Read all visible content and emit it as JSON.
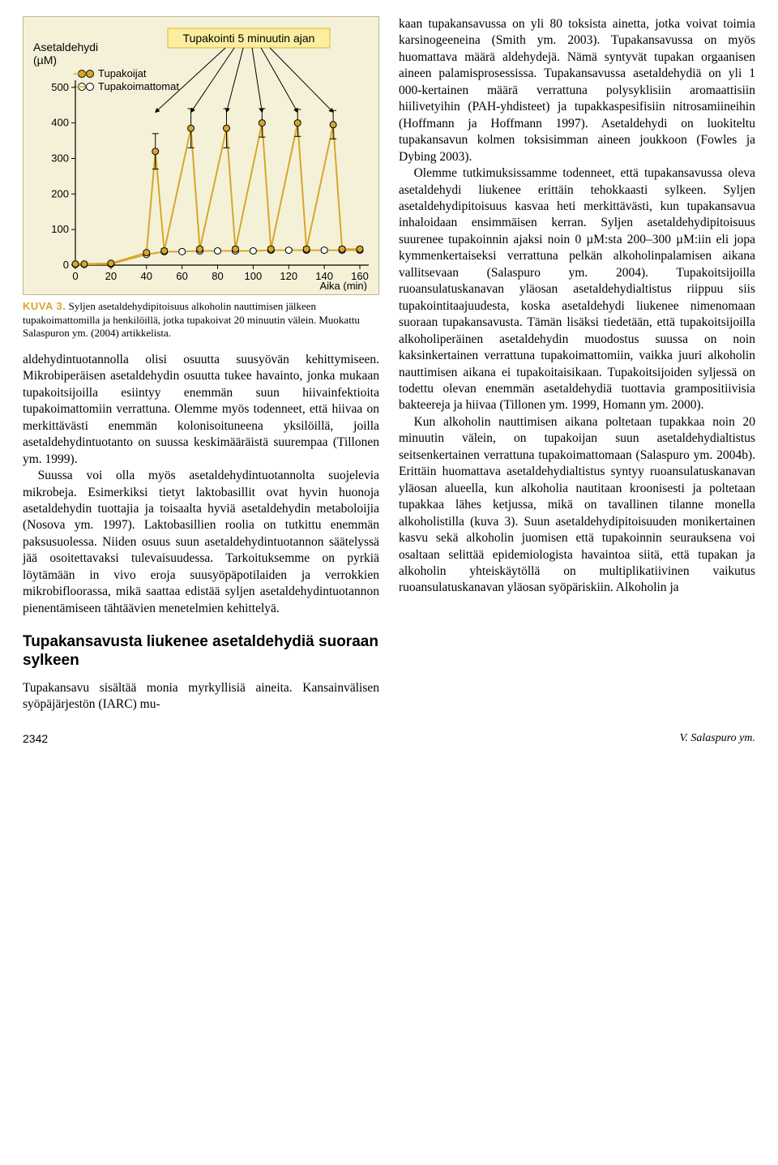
{
  "chart": {
    "type": "line-with-errorbars",
    "background_color": "#f5f1d9",
    "border_color": "#bdb88a",
    "y_axis_title_line1": "Asetaldehydi",
    "y_axis_title_line2": "(µM)",
    "annotation_box_text": "Tupakointi 5 minuutin ajan",
    "annotation_box_fill": "#fceea0",
    "annotation_box_border": "#d7b82b",
    "legend": [
      {
        "label": "Tupakoijat",
        "color": "#d7a72b",
        "marker_fill": "#d7a72b"
      },
      {
        "label": "Tupakoimattomat",
        "color": "#d7a72b",
        "marker_fill": "#ffffff"
      }
    ],
    "x_label": "Aika (min)",
    "x_ticks": [
      0,
      20,
      40,
      60,
      80,
      100,
      120,
      140,
      160
    ],
    "y_ticks": [
      0,
      100,
      200,
      300,
      400,
      500
    ],
    "xlim": [
      0,
      165
    ],
    "ylim": [
      0,
      520
    ],
    "axis_color": "#000000",
    "series_smokers": {
      "color": "#d7a72b",
      "marker_fill": "#d7a72b",
      "marker_stroke": "#000000",
      "line_width": 2,
      "marker_radius": 4,
      "points": [
        {
          "x": 0,
          "y": 3,
          "err": 0
        },
        {
          "x": 5,
          "y": 3,
          "err": 0
        },
        {
          "x": 20,
          "y": 5,
          "err": 0
        },
        {
          "x": 40,
          "y": 35,
          "err": 5
        },
        {
          "x": 45,
          "y": 320,
          "err": 50
        },
        {
          "x": 50,
          "y": 40,
          "err": 6
        },
        {
          "x": 65,
          "y": 385,
          "err": 55
        },
        {
          "x": 70,
          "y": 45,
          "err": 6
        },
        {
          "x": 85,
          "y": 385,
          "err": 55
        },
        {
          "x": 90,
          "y": 45,
          "err": 6
        },
        {
          "x": 105,
          "y": 400,
          "err": 40
        },
        {
          "x": 110,
          "y": 45,
          "err": 6
        },
        {
          "x": 125,
          "y": 400,
          "err": 38
        },
        {
          "x": 130,
          "y": 45,
          "err": 6
        },
        {
          "x": 145,
          "y": 395,
          "err": 40
        },
        {
          "x": 150,
          "y": 45,
          "err": 6
        },
        {
          "x": 160,
          "y": 45,
          "err": 6
        }
      ]
    },
    "series_nonsmokers": {
      "color": "#d7a72b",
      "marker_fill": "#ffffff",
      "marker_stroke": "#000000",
      "line_width": 2,
      "marker_radius": 4,
      "points": [
        {
          "x": 0,
          "y": 2,
          "err": 0
        },
        {
          "x": 5,
          "y": 2,
          "err": 0
        },
        {
          "x": 20,
          "y": 3,
          "err": 0
        },
        {
          "x": 40,
          "y": 30,
          "err": 4
        },
        {
          "x": 50,
          "y": 38,
          "err": 5
        },
        {
          "x": 60,
          "y": 38,
          "err": 5
        },
        {
          "x": 70,
          "y": 40,
          "err": 5
        },
        {
          "x": 80,
          "y": 40,
          "err": 5
        },
        {
          "x": 90,
          "y": 40,
          "err": 5
        },
        {
          "x": 100,
          "y": 40,
          "err": 5
        },
        {
          "x": 110,
          "y": 42,
          "err": 5
        },
        {
          "x": 120,
          "y": 42,
          "err": 5
        },
        {
          "x": 130,
          "y": 42,
          "err": 5
        },
        {
          "x": 140,
          "y": 42,
          "err": 5
        },
        {
          "x": 150,
          "y": 42,
          "err": 5
        },
        {
          "x": 160,
          "y": 42,
          "err": 5
        }
      ]
    },
    "arrow_x_positions": [
      45,
      65,
      85,
      105,
      125,
      145
    ]
  },
  "caption": {
    "label": "KUVA 3.",
    "text": "Syljen asetaldehydipitoisuus alkoholin nauttimisen jälkeen tupakoimattomilla ja henkilöillä, jotka tupakoivat 20 minuutin välein. Muokattu Salaspuron ym. (2004) artikkelista."
  },
  "left_paragraphs": [
    "aldehydintuotannolla olisi osuutta suusyövän kehittymiseen. Mikrobiperäisen asetaldehydin osuutta tukee havainto, jonka mukaan tupakoitsijoilla esiintyy enemmän suun hiivainfektioita tupakoimattomiin verrattuna. Olemme myös todenneet, että hiivaa on merkittävästi enemmän kolonisoituneena yksilöillä, joilla asetaldehydintuotanto on suussa keskimääräistä suurempaa (Tillonen ym. 1999).",
    "Suussa voi olla myös asetaldehydintuotannolta suojelevia mikrobeja. Esimerkiksi tietyt laktobasillit ovat hyvin huonoja asetaldehydin tuottajia ja toisaalta hyviä asetaldehydin metaboloijia (Nosova ym. 1997). Laktobasillien roolia on tutkittu enemmän paksusuolessa. Niiden osuus suun asetaldehydintuotannon säätelyssä jää osoitettavaksi tulevaisuudessa. Tarkoituksemme on pyrkiä löytämään in vivo eroja suusyöpäpotilaiden ja verrokkien mikrobifloorassa, mikä saattaa edistää syljen asetaldehydintuotannon pienentämiseen tähtäävien menetelmien kehittelyä."
  ],
  "section_heading": "Tupakansavusta liukenee asetaldehydiä suoraan sylkeen",
  "left_paragraphs_after": [
    "Tupakansavu sisältää monia myrkyllisiä aineita. Kansainvälisen syöpäjärjestön (IARC) mu-"
  ],
  "right_paragraphs": [
    "kaan tupakansavussa on yli 80 toksista ainetta, jotka voivat toimia karsinogeeneina (Smith ym. 2003). Tupakansavussa on myös huomattava määrä aldehydejä. Nämä syntyvät tupakan orgaanisen aineen palamisprosessissa. Tupakansavussa asetaldehydiä on yli 1 000-kertainen määrä verrattuna polysyklisiin aromaattisiin hiilivetyihin (PAH-yhdisteet) ja tupakkaspesifisiin nitrosamiineihin (Hoffmann ja Hoffmann 1997). Asetaldehydi on luokiteltu tupakansavun kolmen toksisimman aineen joukkoon (Fowles ja Dybing 2003).",
    "Olemme tutkimuksissamme todenneet, että tupakansavussa oleva asetaldehydi liukenee erittäin tehokkaasti sylkeen. Syljen asetaldehydipitoisuus kasvaa heti merkittävästi, kun tupakansavua inhaloidaan ensimmäisen kerran. Syljen asetaldehydipitoisuus suurenee tupakoinnin ajaksi noin 0 µM:sta 200–300 µM:iin eli jopa kymmenkertaiseksi verrattuna pelkän alkoholinpalamisen aikana vallitsevaan (Salaspuro ym. 2004). Tupakoitsijoilla ruoansulatuskanavan yläosan asetaldehydialtistus riippuu siis tupakointitaajuudesta, koska asetaldehydi liukenee nimenomaan suoraan tupakansavusta. Tämän lisäksi tiedetään, että tupakoitsijoilla alkoholiperäinen asetaldehydin muodostus suussa on noin kaksinkertainen verrattuna tupakoimattomiin, vaikka juuri alkoholin nauttimisen aikana ei tupakoitaisikaan. Tupakoitsijoiden syljessä on todettu olevan enemmän asetaldehydiä tuottavia grampositiivisia bakteereja ja hiivaa (Tillonen ym. 1999, Homann ym. 2000).",
    "Kun alkoholin nauttimisen aikana poltetaan tupakkaa noin 20 minuutin välein, on tupakoijan suun asetaldehydialtistus seitsenkertainen verrattuna tupakoimattomaan (Salaspuro ym. 2004b). Erittäin huomattava asetaldehydialtistus syntyy ruoansulatuskanavan yläosan alueella, kun alkoholia nautitaan kroonisesti ja poltetaan tupakkaa lähes ketjussa, mikä on tavallinen tilanne monella alkoholistilla (kuva 3). Suun asetaldehydipitoisuuden monikertainen kasvu sekä alkoholin juomisen että tupakoinnin seurauksena voi osaltaan selittää epidemiologista havaintoa siitä, että tupakan ja alkoholin yhteiskäytöllä on multiplikatiivinen vaikutus ruoansulatuskanavan yläosan syöpäriskiin. Alkoholin ja"
  ],
  "footer": {
    "page": "2342",
    "authors": "V. Salaspuro ym."
  }
}
